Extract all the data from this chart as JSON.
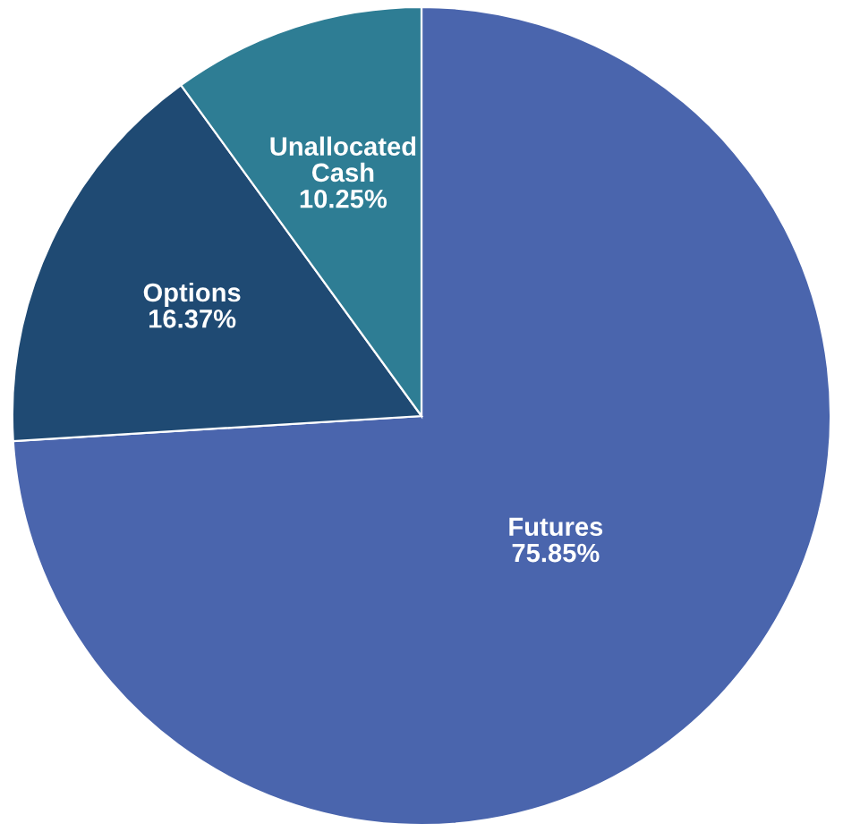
{
  "chart_data": {
    "type": "pie",
    "categories": [
      "Futures",
      "Options",
      "Unallocated\nCash"
    ],
    "values": [
      75.85,
      16.37,
      10.25
    ],
    "value_labels": [
      "75.85%",
      "16.37%",
      "10.25%"
    ],
    "colors": [
      "#4a65ad",
      "#1f4a73",
      "#2e7d94"
    ],
    "legend": false
  }
}
